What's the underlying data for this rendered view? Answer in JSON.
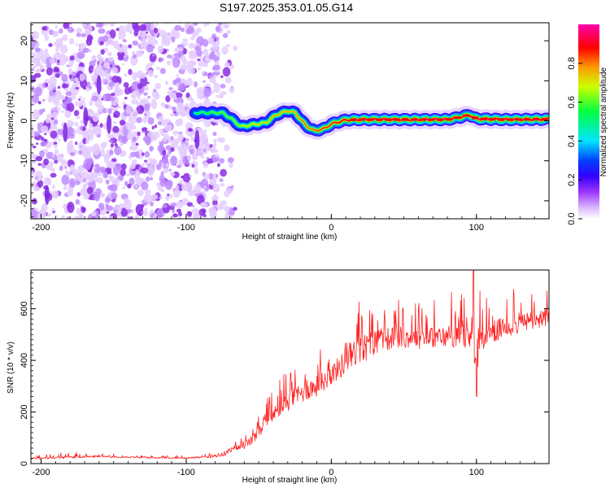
{
  "figure_title": "S197.2025.353.01.05.G14",
  "chart_data": [
    {
      "type": "heatmap",
      "title": "S197.2025.353.01.05.G14",
      "xlabel": "Height of straight line (km)",
      "ylabel": "Frequency (Hz)",
      "xlim": [
        -207,
        150
      ],
      "ylim": [
        -24.5,
        24.5
      ],
      "xticks": [
        -200,
        -100,
        0,
        100
      ],
      "yticks": [
        -20,
        -10,
        0,
        10,
        20
      ],
      "colorbar": {
        "label": "Normalized spectral amplitude",
        "range": [
          0,
          1
        ],
        "ticks": [
          0.0,
          0.2,
          0.4,
          0.6,
          0.8
        ],
        "colors": [
          "#ffffff",
          "#cc88ff",
          "#7a00ff",
          "#0000ff",
          "#00ffff",
          "#00ff00",
          "#ffff00",
          "#ff8800",
          "#ff0000",
          "#ff00cc"
        ]
      },
      "noise_region_km": [
        -207,
        -78
      ],
      "ridge": {
        "x": [
          -94,
          -85,
          -75,
          -70,
          -62,
          -55,
          -45,
          -38,
          -30,
          -25,
          -18,
          -12,
          -5,
          0,
          10,
          20,
          40,
          60,
          80,
          90,
          95,
          100,
          120,
          150
        ],
        "y": [
          2.0,
          2.0,
          2.0,
          0.8,
          -1.5,
          -1.0,
          -0.5,
          1.5,
          2.5,
          2.0,
          -1.0,
          -2.5,
          -2.0,
          -0.8,
          0.2,
          0.3,
          0.3,
          0.3,
          0.3,
          1.0,
          1.5,
          0.5,
          0.3,
          0.4
        ],
        "amplitude": [
          0.5,
          0.55,
          0.6,
          0.6,
          0.65,
          0.7,
          0.7,
          0.75,
          0.75,
          0.75,
          0.8,
          0.8,
          0.85,
          0.85,
          0.88,
          0.95,
          0.95,
          0.95,
          0.95,
          0.9,
          0.85,
          0.95,
          0.95,
          0.95
        ]
      }
    },
    {
      "type": "line",
      "xlabel": "Height of straight line (km)",
      "ylabel": "SNR (10 * v/v)",
      "xlim": [
        -207,
        150
      ],
      "ylim": [
        0,
        750
      ],
      "xticks": [
        -200,
        -100,
        0,
        100
      ],
      "yticks": [
        0,
        200,
        400,
        600
      ],
      "series": [
        {
          "name": "SNR",
          "color": "#ff2020",
          "x": [
            -207,
            -180,
            -160,
            -140,
            -120,
            -100,
            -85,
            -75,
            -70,
            -65,
            -60,
            -55,
            -50,
            -45,
            -40,
            -35,
            -30,
            -25,
            -20,
            -15,
            -10,
            -5,
            0,
            5,
            10,
            15,
            20,
            25,
            30,
            40,
            50,
            60,
            70,
            80,
            90,
            98,
            100,
            102,
            110,
            120,
            130,
            140,
            150
          ],
          "y": [
            20,
            25,
            28,
            25,
            22,
            22,
            25,
            35,
            50,
            60,
            70,
            90,
            120,
            160,
            190,
            215,
            240,
            260,
            275,
            290,
            300,
            320,
            345,
            370,
            395,
            420,
            440,
            455,
            470,
            485,
            490,
            485,
            490,
            490,
            495,
            470,
            340,
            470,
            505,
            530,
            545,
            555,
            570
          ],
          "spike_amplitude": [
            8,
            10,
            8,
            6,
            5,
            6,
            8,
            18,
            25,
            25,
            30,
            40,
            50,
            60,
            60,
            70,
            80,
            90,
            90,
            90,
            90,
            90,
            90,
            100,
            110,
            130,
            130,
            120,
            110,
            100,
            90,
            90,
            90,
            90,
            100,
            110,
            100,
            110,
            100,
            90,
            90,
            80,
            80
          ]
        }
      ]
    }
  ]
}
